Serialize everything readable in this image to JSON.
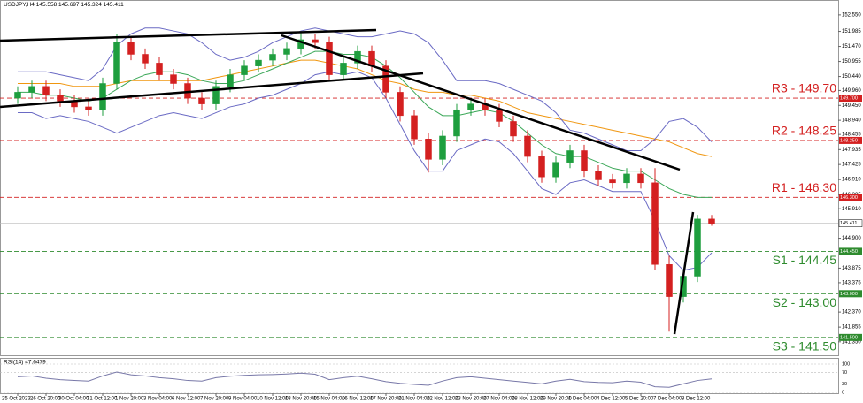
{
  "chart_data": {
    "type": "candlestick",
    "title": "USDJPY,H4",
    "categories": [
      "25 Oct 2023",
      null,
      "26 Oct 20:00",
      null,
      "30 Oct 04:00",
      null,
      "31 Oct 12:00",
      null,
      "1 Nov 20:00",
      null,
      "3 Nov 04:00",
      null,
      "6 Nov 12:00",
      null,
      "7 Nov 20:00",
      null,
      "9 Nov 04:00",
      null,
      "10 Nov 12:00",
      null,
      "13 Nov 20:00",
      null,
      "15 Nov 04:00",
      null,
      "16 Nov 12:00",
      null,
      "17 Nov 20:00",
      null,
      "21 Nov 04:00",
      null,
      "22 Nov 12:00",
      null,
      "23 Nov 20:00",
      null,
      "27 Nov 04:00",
      null,
      "28 Nov 12:00",
      null,
      "29 Nov 20:00",
      null,
      "1 Dec 04:00",
      null,
      "4 Dec 12:00",
      null,
      "5 Dec 20:00",
      null,
      "7 Dec 04:00",
      null,
      "8 Dec 12:00",
      null
    ],
    "open": [
      149.7,
      149.9,
      150.1,
      149.8,
      149.6,
      149.4,
      149.3,
      150.2,
      151.6,
      151.2,
      150.9,
      150.5,
      150.2,
      149.7,
      149.5,
      150.1,
      150.5,
      150.8,
      151.0,
      151.2,
      151.4,
      151.7,
      151.6,
      150.5,
      150.9,
      151.3,
      150.8,
      149.9,
      149.1,
      148.3,
      147.6,
      148.4,
      149.3,
      149.5,
      149.3,
      148.9,
      148.4,
      147.7,
      147.0,
      147.5,
      147.9,
      147.2,
      146.9,
      146.8,
      147.1,
      146.8,
      144.0,
      142.9,
      143.6,
      145.558
    ],
    "high": [
      150.1,
      150.3,
      150.3,
      150.0,
      149.8,
      149.6,
      150.4,
      151.9,
      151.8,
      151.4,
      151.1,
      150.7,
      150.4,
      149.9,
      150.3,
      150.7,
      151.0,
      151.2,
      151.4,
      151.6,
      151.95,
      151.9,
      151.8,
      151.1,
      151.5,
      151.5,
      151.0,
      150.1,
      149.3,
      148.5,
      148.6,
      149.5,
      149.7,
      149.7,
      149.5,
      149.1,
      148.6,
      147.9,
      147.7,
      148.1,
      148.1,
      147.4,
      147.1,
      147.3,
      147.3,
      147.3,
      144.3,
      143.8,
      145.7,
      145.697
    ],
    "low": [
      149.5,
      149.7,
      149.6,
      149.4,
      149.2,
      149.1,
      149.1,
      150.0,
      151.0,
      150.7,
      150.3,
      150.0,
      149.5,
      149.3,
      149.3,
      149.9,
      150.3,
      150.6,
      150.8,
      151.0,
      151.2,
      151.4,
      150.3,
      150.3,
      150.7,
      150.6,
      149.7,
      148.9,
      148.1,
      147.15,
      147.4,
      148.2,
      149.1,
      149.1,
      148.7,
      148.2,
      147.5,
      146.8,
      146.8,
      147.3,
      147.0,
      146.7,
      146.6,
      146.6,
      146.6,
      143.8,
      141.7,
      142.7,
      143.4,
      145.324
    ],
    "close": [
      149.9,
      150.1,
      149.8,
      149.6,
      149.4,
      149.3,
      150.2,
      151.6,
      151.2,
      150.9,
      150.5,
      150.2,
      149.7,
      149.5,
      150.1,
      150.5,
      150.8,
      151.0,
      151.2,
      151.4,
      151.7,
      151.6,
      150.5,
      150.9,
      151.3,
      150.8,
      149.9,
      149.1,
      148.3,
      147.6,
      148.4,
      149.3,
      149.5,
      149.3,
      148.9,
      148.4,
      147.7,
      147.0,
      147.5,
      147.9,
      147.2,
      146.9,
      146.8,
      147.1,
      146.8,
      144.0,
      142.9,
      143.6,
      145.558,
      145.411
    ],
    "up_color": "#1e9e3e",
    "down_color": "#d42020",
    "lines": [
      {
        "color": "#f0960f",
        "values": [
          150.2,
          150.2,
          150.2,
          150.2,
          150.1,
          150.1,
          150.1,
          150.2,
          150.3,
          150.3,
          150.3,
          150.3,
          150.3,
          150.3,
          150.4,
          150.5,
          150.6,
          150.7,
          150.8,
          150.9,
          151.0,
          151.0,
          150.9,
          150.8,
          150.7,
          150.5,
          150.3,
          150.2,
          150.0,
          149.9,
          149.9,
          149.8,
          149.8,
          149.7,
          149.6,
          149.4,
          149.2,
          149.1,
          149.0,
          148.9,
          148.8,
          148.7,
          148.6,
          148.5,
          148.4,
          148.3,
          148.2,
          148.0,
          147.8,
          147.7
        ]
      },
      {
        "color": "#3aa757",
        "values": [
          149.9,
          149.9,
          149.8,
          149.8,
          149.7,
          149.6,
          149.7,
          150.0,
          150.3,
          150.5,
          150.6,
          150.6,
          150.5,
          150.3,
          150.2,
          150.2,
          150.3,
          150.5,
          150.7,
          150.9,
          151.1,
          151.3,
          151.3,
          151.2,
          151.2,
          151.1,
          150.8,
          150.4,
          149.9,
          149.4,
          149.1,
          149.1,
          149.2,
          149.3,
          149.2,
          148.9,
          148.5,
          148.1,
          147.8,
          147.7,
          147.7,
          147.5,
          147.3,
          147.2,
          147.2,
          146.9,
          146.6,
          146.4,
          146.3,
          146.3
        ]
      },
      {
        "color": "#6a6ac4",
        "values": [
          150.6,
          150.6,
          150.6,
          150.5,
          150.4,
          150.3,
          150.7,
          151.5,
          151.9,
          152.1,
          152.1,
          152.0,
          151.9,
          151.6,
          151.2,
          151.0,
          151.1,
          151.3,
          151.6,
          151.8,
          152.0,
          152.1,
          152.0,
          151.9,
          151.8,
          151.8,
          151.9,
          152.0,
          151.9,
          151.6,
          151.0,
          150.3,
          150.3,
          150.3,
          150.2,
          150.0,
          149.8,
          149.6,
          149.2,
          148.6,
          148.5,
          148.3,
          148.1,
          147.9,
          147.9,
          148.3,
          148.9,
          149.0,
          148.7,
          148.2
        ]
      },
      {
        "color": "#6a6ac4",
        "values": [
          149.2,
          149.2,
          149.0,
          149.1,
          149.0,
          148.9,
          148.7,
          148.5,
          148.7,
          148.9,
          149.1,
          149.2,
          149.1,
          149.0,
          149.2,
          149.4,
          149.5,
          149.7,
          149.8,
          150.0,
          150.2,
          150.5,
          150.6,
          150.5,
          150.6,
          150.4,
          149.7,
          148.8,
          147.9,
          147.2,
          147.2,
          147.9,
          148.1,
          148.3,
          148.2,
          147.8,
          147.2,
          146.6,
          146.4,
          146.8,
          146.9,
          146.7,
          146.5,
          146.5,
          146.5,
          145.5,
          144.3,
          143.8,
          143.9,
          144.4
        ]
      }
    ],
    "levels": [
      {
        "name": "R3 - 149.70",
        "value": 149.7,
        "axis_label": "149.700",
        "color": "#d42020"
      },
      {
        "name": "R2 - 148.25",
        "value": 148.25,
        "axis_label": "148.250",
        "color": "#d42020"
      },
      {
        "name": "R1 - 146.30",
        "value": 146.3,
        "axis_label": "146.300",
        "color": "#d42020"
      },
      {
        "name": "S1 - 144.45",
        "value": 144.45,
        "axis_label": "144.450",
        "color": "#2e8b2e"
      },
      {
        "name": "S2 - 143.00",
        "value": 143.0,
        "axis_label": "143.000",
        "color": "#2e8b2e"
      },
      {
        "name": "S3 - 141.50",
        "value": 141.5,
        "axis_label": "141.500",
        "color": "#2e8b2e"
      }
    ],
    "ylim": [
      140.89,
      152.91
    ],
    "yticks": [
      {
        "value": 152.55,
        "label": "152.550"
      },
      151.985,
      {
        "value": 151.47,
        "label": "151.470"
      },
      150.955,
      {
        "value": 150.44,
        "label": "150.440"
      },
      {
        "value": 149.96,
        "label": "149.960"
      },
      {
        "value": 149.45,
        "label": "149.450"
      },
      {
        "value": 148.94,
        "label": "148.940"
      },
      148.455,
      147.935,
      147.425,
      {
        "value": 146.91,
        "label": "146.910"
      },
      146.395,
      {
        "value": 145.91,
        "label": "145.910"
      },
      {
        "value": 144.9,
        "label": "144.900"
      },
      143.875,
      143.375,
      {
        "value": 142.37,
        "label": "142.370"
      },
      141.855,
      {
        "value": 141.35,
        "label": "141.350"
      }
    ],
    "rsi": {
      "title": "RSI(14) 47.6479",
      "color": "#7878a8",
      "values": [
        55,
        58,
        50,
        45,
        42,
        40,
        58,
        72,
        62,
        58,
        52,
        48,
        42,
        40,
        52,
        57,
        60,
        62,
        63,
        65,
        68,
        64,
        45,
        52,
        57,
        48,
        38,
        32,
        28,
        25,
        40,
        52,
        55,
        50,
        45,
        40,
        35,
        30,
        40,
        46,
        38,
        35,
        34,
        40,
        36,
        20,
        18,
        30,
        42,
        47.6479
      ],
      "ylim": [
        0,
        100
      ],
      "yticks": [
        0,
        30,
        70,
        100
      ]
    }
  }
}
